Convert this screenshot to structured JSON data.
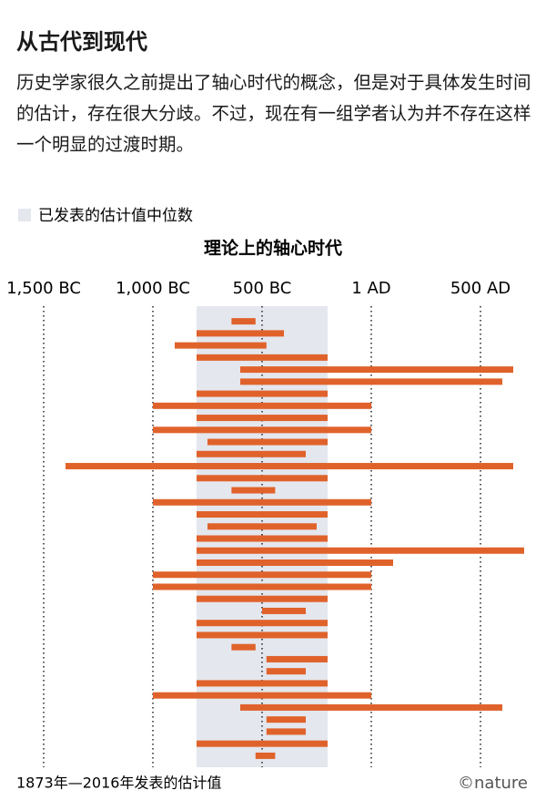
{
  "chart_data": {
    "type": "range_bar",
    "title": "从古代到现代",
    "subtitle": "历史学家很久之前提出了轴心时代的概念，但是对于具体发生时间的估计，存在很大分歧。不过，现在有一组学者认为并不存在这样一个明显的过渡时期。",
    "chart_title": "理论上的轴心时代",
    "band": {
      "name": "已发表的估计值中位数",
      "range": [
        -800,
        -200
      ],
      "color": "#e4e7ed"
    },
    "series": [
      {
        "name": "1873年—2016年发表的估计值",
        "color": "#e0622b",
        "start": [
          -640,
          -800,
          -900,
          -800,
          -600,
          -600,
          -800,
          -1000,
          -800,
          -1000,
          -750,
          -800,
          -1400,
          -800,
          -640,
          -1000,
          -800,
          -750,
          -800,
          -800,
          -800,
          -1000,
          -1000,
          -800,
          -500,
          -800,
          -800,
          -640,
          -480,
          -480,
          -800,
          -1000,
          -600,
          -480,
          -480,
          -800,
          -530
        ],
        "end": [
          -530,
          -400,
          -480,
          -200,
          650,
          600,
          -200,
          0,
          -200,
          0,
          -200,
          -300,
          650,
          -200,
          -440,
          0,
          -200,
          -250,
          -200,
          700,
          100,
          0,
          0,
          -200,
          -300,
          -200,
          -200,
          -530,
          -200,
          -300,
          -200,
          0,
          600,
          -300,
          -300,
          -200,
          -440
        ]
      }
    ],
    "xlim": [
      -1700,
      800
    ],
    "xticks": [
      {
        "value": -1500,
        "label": "1,500 BC"
      },
      {
        "value": -1000,
        "label": "1,000 BC"
      },
      {
        "value": -500,
        "label": "500 BC"
      },
      {
        "value": 0,
        "label": "1 AD"
      },
      {
        "value": 500,
        "label": "500 AD"
      }
    ],
    "grid": true,
    "credit": "©nature"
  }
}
